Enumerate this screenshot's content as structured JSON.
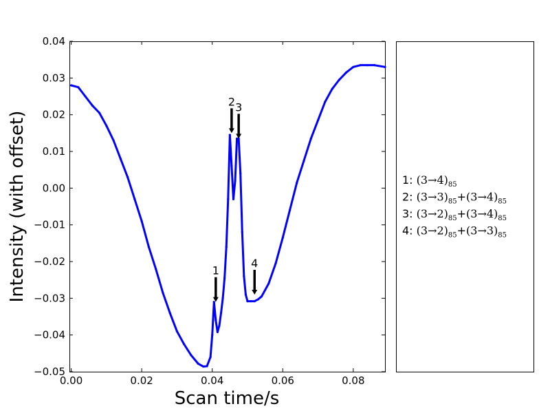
{
  "chart_data": {
    "type": "line",
    "title": "",
    "xlabel": "Scan time/s",
    "ylabel": "Intensity (with offset)",
    "xlim": [
      -0.0005,
      0.089
    ],
    "ylim": [
      -0.05,
      0.04
    ],
    "grid": false,
    "xticks": [
      0.0,
      0.02,
      0.04,
      0.06,
      0.08
    ],
    "xtick_labels": [
      "0.00",
      "0.02",
      "0.04",
      "0.06",
      "0.08"
    ],
    "yticks": [
      0.04,
      0.03,
      0.02,
      0.01,
      0.0,
      -0.01,
      -0.02,
      -0.03,
      -0.04,
      -0.05
    ],
    "ytick_labels": [
      "0.04",
      "0.03",
      "0.02",
      "0.01",
      "0.00",
      "−0.01",
      "−0.02",
      "−0.03",
      "−0.04",
      "−0.05"
    ],
    "series": [
      {
        "color": "#0000ff",
        "x": [
          0.0,
          0.002,
          0.004,
          0.006,
          0.008,
          0.01,
          0.012,
          0.014,
          0.016,
          0.018,
          0.02,
          0.022,
          0.024,
          0.026,
          0.028,
          0.03,
          0.032,
          0.034,
          0.036,
          0.0375,
          0.0385,
          0.0395,
          0.04,
          0.0405,
          0.041,
          0.0415,
          0.042,
          0.0425,
          0.043,
          0.0435,
          0.044,
          0.0445,
          0.045,
          0.0455,
          0.046,
          0.0465,
          0.047,
          0.0475,
          0.048,
          0.0485,
          0.049,
          0.0495,
          0.05,
          0.051,
          0.052,
          0.053,
          0.054,
          0.056,
          0.058,
          0.06,
          0.062,
          0.064,
          0.066,
          0.068,
          0.07,
          0.072,
          0.074,
          0.076,
          0.078,
          0.08,
          0.082,
          0.084,
          0.086,
          0.089
        ],
        "y": [
          0.028,
          0.0275,
          0.025,
          0.0225,
          0.0205,
          0.017,
          0.013,
          0.008,
          0.003,
          -0.003,
          -0.009,
          -0.016,
          -0.022,
          -0.0285,
          -0.034,
          -0.039,
          -0.0425,
          -0.0455,
          -0.0478,
          -0.0486,
          -0.0485,
          -0.046,
          -0.04,
          -0.031,
          -0.036,
          -0.0392,
          -0.0375,
          -0.034,
          -0.03,
          -0.0245,
          -0.016,
          -0.003,
          0.0145,
          0.006,
          -0.003,
          0.002,
          0.0135,
          0.0135,
          0.004,
          -0.012,
          -0.024,
          -0.029,
          -0.0308,
          -0.0308,
          -0.0308,
          -0.0303,
          -0.0295,
          -0.026,
          -0.0205,
          -0.0135,
          -0.006,
          0.0015,
          0.0075,
          0.0135,
          0.0185,
          0.0235,
          0.027,
          0.0295,
          0.0315,
          0.033,
          0.0335,
          0.0335,
          0.0335,
          0.033
        ]
      }
    ],
    "annotations": [
      {
        "label": "1",
        "x": 0.041,
        "y": -0.031
      },
      {
        "label": "2",
        "x": 0.0455,
        "y": 0.015
      },
      {
        "label": "3",
        "x": 0.0475,
        "y": 0.0135
      },
      {
        "label": "4",
        "x": 0.052,
        "y": -0.029
      }
    ]
  },
  "legend_panel": {
    "entries": [
      {
        "num": "1:",
        "parts": [
          {
            "t": "(3→4)",
            "s": "85"
          }
        ]
      },
      {
        "num": "2:",
        "parts": [
          {
            "t": "(3→3)",
            "s": "85"
          },
          {
            "t": "(3→4)",
            "s": "85"
          }
        ]
      },
      {
        "num": "3:",
        "parts": [
          {
            "t": "(3→2)",
            "s": "85"
          },
          {
            "t": "(3→4)",
            "s": "85"
          }
        ]
      },
      {
        "num": "4:",
        "parts": [
          {
            "t": "(3→2)",
            "s": "85"
          },
          {
            "t": "(3→3)",
            "s": "85"
          }
        ]
      }
    ]
  }
}
